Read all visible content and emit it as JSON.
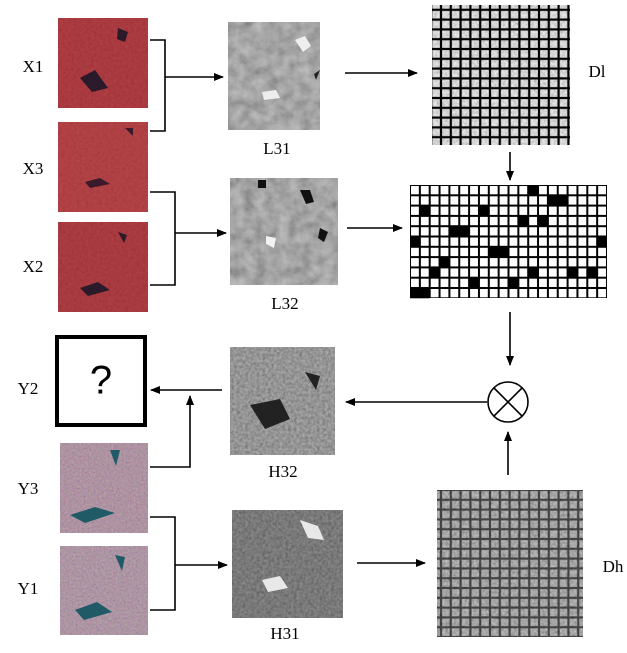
{
  "labels": {
    "x1": "X1",
    "x3": "X3",
    "x2": "X2",
    "l31": "L31",
    "l32": "L32",
    "dl": "Dl",
    "y2": "Y2",
    "unknown": "?",
    "y3": "Y3",
    "y1": "Y1",
    "h32": "H32",
    "h31": "H31",
    "dh": "Dh"
  }
}
